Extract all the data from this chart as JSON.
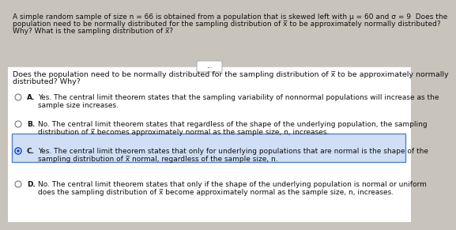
{
  "bg_color": "#c8c4bc",
  "white_panel_color": "#ffffff",
  "header_bg": "#c8c4bc",
  "header_text_line1": "A simple random sample of size n = 66 is obtained from a population that is skewed left with μ = 60 and σ = 9  Does the",
  "header_text_line2": "population need to be normally distributed for the sampling distribution of x̅ to be approximately normally distributed?",
  "header_text_line3": "Why? What is the sampling distribution of x̅?",
  "ellipsis_text": "...",
  "question_line1": "Does the population need to be normally distributed for the sampling distribution of x̅ to be approximately normally",
  "question_line2": "distributed? Why?",
  "options": [
    {
      "label": "A.",
      "line1": "Yes. The central limit theorem states that the sampling variability of nonnormal populations will increase as the",
      "line2": "sample size increases.",
      "selected": false
    },
    {
      "label": "B.",
      "line1": "No. The central limit theorem states that regardless of the shape of the underlying population, the sampling",
      "line2": "distribution of x̅ becomes approximately normal as the sample size, n, increases.",
      "selected": false
    },
    {
      "label": "C.",
      "line1": "Yes. The central limit theorem states that only for underlying populations that are normal is the shape of the",
      "line2": "sampling distribution of x̅ normal, regardless of the sample size, n.",
      "selected": true
    },
    {
      "label": "D.",
      "line1": "No. The central limit theorem states that only if the shape of the underlying population is normal or uniform",
      "line2": "does the sampling distribution of x̅ become approximately normal as the sample size, n, increases.",
      "selected": false
    }
  ],
  "font_size_header": 6.5,
  "font_size_question": 6.8,
  "font_size_options": 6.5,
  "font_size_label": 6.5,
  "selected_box_color": "#d0dff5",
  "selected_box_edge": "#5580cc",
  "radio_edge_normal": "#777777",
  "radio_edge_selected": "#2255cc",
  "radio_fill_selected": "#2255cc",
  "text_color": "#111111",
  "line_color": "#cccccc",
  "ellipsis_edge": "#aaaaaa"
}
